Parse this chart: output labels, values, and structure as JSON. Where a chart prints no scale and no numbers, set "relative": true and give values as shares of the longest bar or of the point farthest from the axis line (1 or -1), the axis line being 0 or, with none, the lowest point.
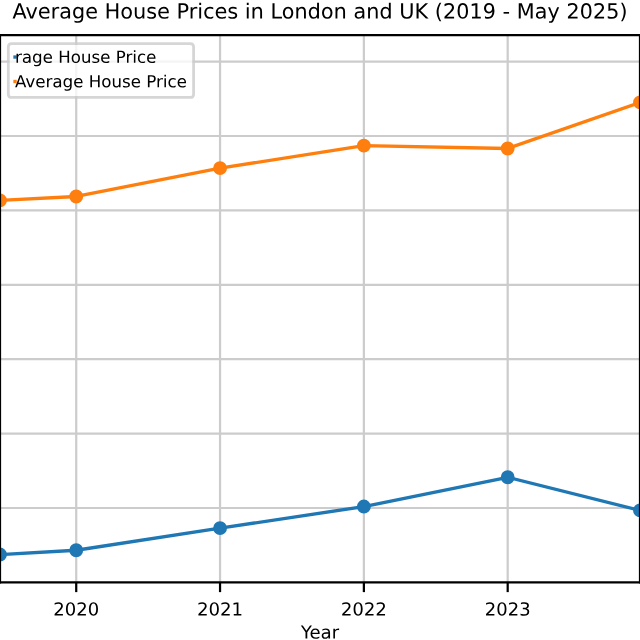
{
  "chart_data": {
    "type": "line",
    "title": "Average House Prices in London and UK (2019 - May 2025)",
    "xlabel": "Year",
    "relative": true,
    "xlim": [
      2019.47,
      2023.92
    ],
    "xticks": [
      2020,
      2021,
      2022,
      2023
    ],
    "series": [
      {
        "name": "rage House Price",
        "color": "#1f77b4",
        "x": [
          2019.47,
          2020,
          2021,
          2022,
          2023,
          2023.92
        ],
        "values": [
          0.058,
          0.067,
          0.113,
          0.158,
          0.219,
          0.15
        ]
      },
      {
        "name": "Average House Price",
        "color": "#ff7f0e",
        "x": [
          2019.47,
          2020,
          2021,
          2022,
          2023,
          2023.92
        ],
        "values": [
          0.796,
          0.804,
          0.863,
          0.91,
          0.904,
          1.0
        ]
      }
    ],
    "grid": true,
    "legend": "top left",
    "marker": "circle",
    "line_style": "solid"
  }
}
